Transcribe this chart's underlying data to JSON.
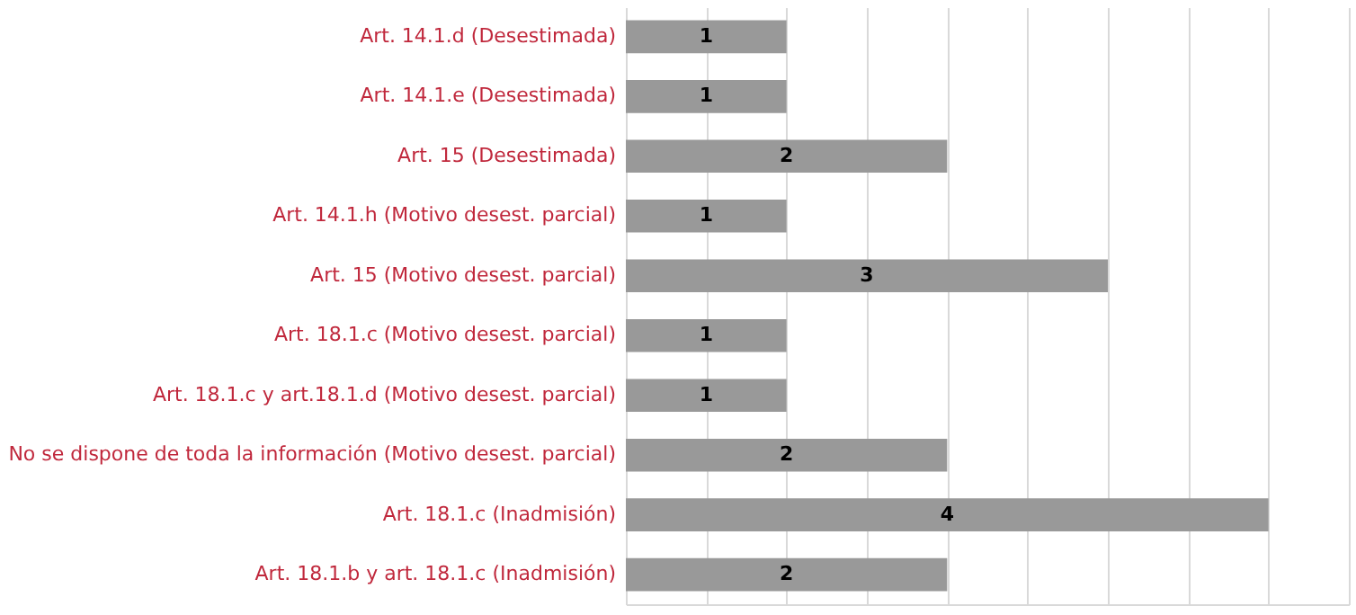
{
  "chart_data": {
    "type": "bar",
    "orientation": "horizontal",
    "categories": [
      "Art. 14.1.d (Desestimada)",
      "Art. 14.1.e (Desestimada)",
      "Art. 15 (Desestimada)",
      "Art. 14.1.h (Motivo desest. parcial)",
      "Art. 15 (Motivo desest. parcial)",
      "Art. 18.1.c (Motivo desest. parcial)",
      "Art. 18.1.c y art.18.1.d (Motivo desest. parcial)",
      "No se dispone de toda la información (Motivo desest. parcial)",
      "Art. 18.1.c (Inadmisión)",
      "Art. 18.1.b y art. 18.1.c (Inadmisión)"
    ],
    "values": [
      1,
      1,
      2,
      1,
      3,
      1,
      1,
      2,
      4,
      2
    ],
    "color": "#999999",
    "xlim": [
      0,
      4.5
    ],
    "xticks": [
      {
        "value": 0,
        "label": null
      },
      {
        "value": 0.5,
        "label": null
      },
      {
        "value": 1,
        "label": null
      },
      {
        "value": 1.5,
        "label": null
      },
      {
        "value": 2,
        "label": null
      },
      {
        "value": 2.5,
        "label": null
      },
      {
        "value": 3,
        "label": null
      },
      {
        "value": 3.5,
        "label": null
      },
      {
        "value": 4,
        "label": null
      },
      {
        "value": 4.5,
        "label": null
      }
    ],
    "grid": "x",
    "tick_labels": "y",
    "data_labels": true
  }
}
